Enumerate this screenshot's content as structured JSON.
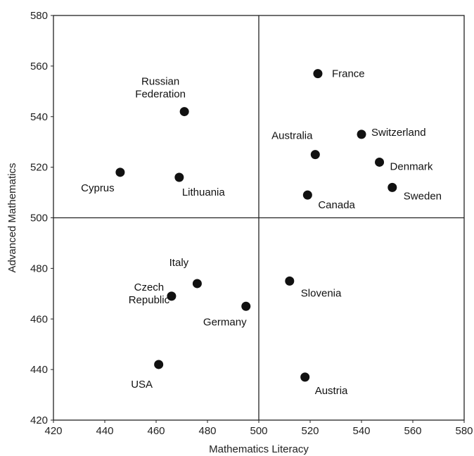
{
  "chart_data": {
    "type": "scatter",
    "xlabel": "Mathematics Literacy",
    "ylabel": "Advanced Mathematics",
    "xlim": [
      420,
      580
    ],
    "ylim": [
      420,
      580
    ],
    "x_ticks": [
      420,
      440,
      460,
      480,
      500,
      520,
      540,
      560,
      580
    ],
    "y_ticks": [
      420,
      440,
      460,
      480,
      500,
      520,
      540,
      560,
      580
    ],
    "quadrant_lines": {
      "x": 500,
      "y": 500
    },
    "grid": false,
    "marker_color": "#111111",
    "points": [
      {
        "label": [
          "France"
        ],
        "x": 523,
        "y": 557
      },
      {
        "label": [
          "Russian",
          "Federation"
        ],
        "x": 471,
        "y": 542
      },
      {
        "label": [
          "Switzerland"
        ],
        "x": 540,
        "y": 533
      },
      {
        "label": [
          "Australia"
        ],
        "x": 522,
        "y": 525
      },
      {
        "label": [
          "Denmark"
        ],
        "x": 547,
        "y": 522
      },
      {
        "label": [
          "Cyprus"
        ],
        "x": 446,
        "y": 518
      },
      {
        "label": [
          "Lithuania"
        ],
        "x": 469,
        "y": 516
      },
      {
        "label": [
          "Sweden"
        ],
        "x": 552,
        "y": 512
      },
      {
        "label": [
          "Canada"
        ],
        "x": 519,
        "y": 509
      },
      {
        "label": [
          "Slovenia"
        ],
        "x": 512,
        "y": 475
      },
      {
        "label": [
          "Italy"
        ],
        "x": 476,
        "y": 474
      },
      {
        "label": [
          "Czech",
          "Republic"
        ],
        "x": 466,
        "y": 469
      },
      {
        "label": [
          "Germany"
        ],
        "x": 495,
        "y": 465
      },
      {
        "label": [
          "USA"
        ],
        "x": 461,
        "y": 442
      },
      {
        "label": [
          "Austria"
        ],
        "x": 518,
        "y": 437
      }
    ]
  }
}
